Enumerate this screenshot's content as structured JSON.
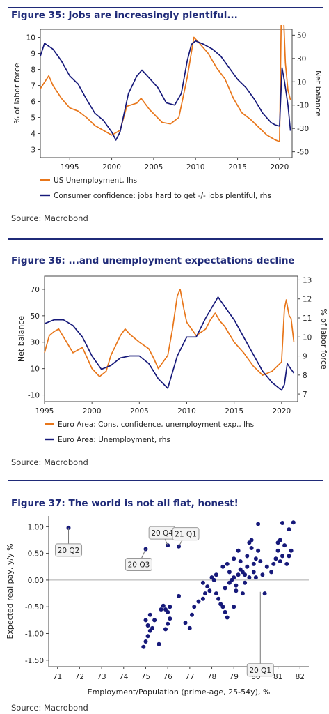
{
  "figures": [
    {
      "title": "Figure 35: Jobs are increasingly plentiful...",
      "source": "Source: Macrobond"
    },
    {
      "title": "Figure 36: ...and unemployment expectations decline",
      "source": "Source: Macrobond"
    },
    {
      "title": "Figure 37: The world is not all flat, honest!",
      "source": "Source: Macrobond"
    }
  ],
  "colors": {
    "orange": "#e8761a",
    "navy": "#16197a",
    "title": "#1f2a78"
  },
  "chart_data": [
    {
      "type": "line",
      "xlabel": "",
      "ylabel_left": "% of labor force",
      "ylabel_right": "Net balance",
      "xlim": [
        1991.5,
        2021.5
      ],
      "ylim_left": [
        2.5,
        10.5
      ],
      "ylim_right": [
        -55,
        55
      ],
      "x_ticks": [
        1995,
        2000,
        2005,
        2010,
        2015,
        2020
      ],
      "y_ticks_left": [
        3,
        4,
        5,
        6,
        7,
        8,
        9,
        10
      ],
      "y_ticks_right": [
        -50,
        -30,
        -10,
        10,
        30,
        50
      ],
      "legend": "bottom",
      "series": [
        {
          "name": "US Unemployment, lhs",
          "axis": "left",
          "color": "#e8761a",
          "x": [
            1991.5,
            1992.5,
            1993,
            1994,
            1995,
            1996,
            1997,
            1998,
            1999,
            2000,
            2001,
            2001.8,
            2003,
            2003.5,
            2004.5,
            2006,
            2007,
            2008,
            2009,
            2009.8,
            2010.5,
            2011.5,
            2012.5,
            2013.5,
            2014.5,
            2015.5,
            2016.5,
            2017.5,
            2018.5,
            2019.5,
            2020.0,
            2020.3,
            2020.5,
            2020.7,
            2021.0,
            2021.3
          ],
          "y": [
            6.8,
            7.6,
            7.0,
            6.2,
            5.6,
            5.4,
            5.0,
            4.5,
            4.2,
            3.9,
            4.2,
            5.7,
            5.9,
            6.2,
            5.5,
            4.7,
            4.6,
            5.0,
            7.5,
            10.0,
            9.6,
            9.0,
            8.1,
            7.4,
            6.2,
            5.3,
            4.9,
            4.4,
            3.9,
            3.6,
            3.5,
            14.7,
            11.1,
            8.4,
            6.7,
            6.1
          ]
        },
        {
          "name": "Consumer confidence: jobs hard to get -/- jobs plentiful, rhs",
          "axis": "right",
          "color": "#16197a",
          "x": [
            1991.5,
            1992,
            1993,
            1994,
            1995,
            1996,
            1997,
            1998,
            1999,
            2000,
            2000.5,
            2001,
            2002,
            2003,
            2003.6,
            2004.5,
            2005.5,
            2006.5,
            2007.5,
            2008.3,
            2009.0,
            2009.5,
            2010,
            2011,
            2012,
            2013,
            2014,
            2015,
            2016,
            2017,
            2018,
            2019,
            2019.5,
            2020.0,
            2020.3,
            2020.6,
            2021.0,
            2021.3
          ],
          "y": [
            32,
            43,
            38,
            28,
            15,
            8,
            -5,
            -17,
            -23,
            -33,
            -40,
            -33,
            0,
            15,
            20,
            13,
            5,
            -8,
            -10,
            0,
            28,
            42,
            45,
            42,
            38,
            32,
            22,
            12,
            5,
            -5,
            -17,
            -25,
            -27,
            -28,
            22,
            10,
            -10,
            -32
          ]
        }
      ]
    },
    {
      "type": "line",
      "xlabel": "",
      "ylabel_left": "Net balance",
      "ylabel_right": "% of labor force",
      "xlim": [
        1995,
        2021.7
      ],
      "ylim_left": [
        -15,
        80
      ],
      "ylim_right": [
        6.6,
        13.2
      ],
      "x_ticks": [
        1995,
        2000,
        2005,
        2010,
        2015,
        2020
      ],
      "y_ticks_left": [
        -10,
        10,
        30,
        50,
        70
      ],
      "y_ticks_right": [
        7,
        8,
        9,
        10,
        11,
        12,
        13
      ],
      "legend": "bottom",
      "series": [
        {
          "name": "Euro Area: Cons. confidence, unemployment exp., lhs",
          "axis": "left",
          "color": "#e8761a",
          "x": [
            1995,
            1995.5,
            1996,
            1996.5,
            1997,
            1998,
            1999,
            2000,
            2000.8,
            2001.5,
            2002,
            2003,
            2003.5,
            2004,
            2005,
            2006,
            2006.5,
            2007,
            2008,
            2008.5,
            2009.0,
            2009.3,
            2009.7,
            2010,
            2011,
            2012,
            2012.5,
            2013,
            2013.5,
            2014,
            2015,
            2016,
            2017,
            2018,
            2019,
            2020.0,
            2020.3,
            2020.5,
            2020.8,
            2021.0,
            2021.3
          ],
          "y": [
            22,
            35,
            38,
            40,
            34,
            22,
            26,
            10,
            4,
            8,
            20,
            35,
            40,
            36,
            30,
            25,
            18,
            10,
            20,
            40,
            65,
            70,
            55,
            45,
            35,
            40,
            47,
            52,
            46,
            42,
            30,
            22,
            12,
            5,
            8,
            15,
            55,
            62,
            50,
            48,
            30
          ]
        },
        {
          "name": "Euro Area: Unemployment, rhs",
          "axis": "right",
          "color": "#16197a",
          "x": [
            1995,
            1996,
            1997,
            1998,
            1999,
            2000,
            2001,
            2002,
            2003,
            2004,
            2005,
            2006,
            2007,
            2008,
            2009,
            2010,
            2011,
            2012,
            2013.3,
            2014,
            2015,
            2016,
            2017,
            2018,
            2019,
            2020.0,
            2020.3,
            2020.6,
            2021.0,
            2021.3
          ],
          "y": [
            10.7,
            10.9,
            10.9,
            10.6,
            10.0,
            9.0,
            8.3,
            8.5,
            8.9,
            9.0,
            9.0,
            8.6,
            7.8,
            7.3,
            9.0,
            10.0,
            10.0,
            11.0,
            12.1,
            11.6,
            10.9,
            10.0,
            9.1,
            8.2,
            7.6,
            7.2,
            7.5,
            8.6,
            8.3,
            8.1
          ]
        }
      ]
    },
    {
      "type": "scatter",
      "xlabel": "Employment/Population (prime-age, 25-54y), %",
      "ylabel": "Expected real pay, y/y %",
      "xlim": [
        70.6,
        82.4
      ],
      "ylim": [
        -1.62,
        1.2
      ],
      "x_ticks": [
        71,
        72,
        73,
        74,
        75,
        76,
        77,
        78,
        79,
        80,
        81,
        82
      ],
      "y_ticks": [
        1.0,
        0.5,
        0.0,
        -0.5,
        -1.0,
        -1.5
      ],
      "color": "#16197a",
      "annotations": [
        {
          "text": "20 Q2",
          "x": 71.5,
          "y": 0.98
        },
        {
          "text": "20 Q3",
          "x": 75.0,
          "y": 0.58
        },
        {
          "text": "20 Q4",
          "x": 76.0,
          "y": 0.65
        },
        {
          "text": "21 Q1",
          "x": 76.5,
          "y": 0.63
        },
        {
          "text": "20 Q1",
          "x": 80.2,
          "y": -0.22
        }
      ],
      "points": [
        [
          71.5,
          0.98
        ],
        [
          75.0,
          0.58
        ],
        [
          76.0,
          0.65
        ],
        [
          76.5,
          0.63
        ],
        [
          74.9,
          -1.25
        ],
        [
          75.0,
          -1.15
        ],
        [
          75.1,
          -1.05
        ],
        [
          75.2,
          -0.95
        ],
        [
          75.1,
          -0.85
        ],
        [
          75.0,
          -0.75
        ],
        [
          75.3,
          -0.9
        ],
        [
          75.4,
          -0.75
        ],
        [
          75.2,
          -0.65
        ],
        [
          75.6,
          -1.2
        ],
        [
          75.7,
          -0.55
        ],
        [
          75.8,
          -0.48
        ],
        [
          75.9,
          -0.55
        ],
        [
          76.0,
          -0.6
        ],
        [
          76.1,
          -0.5
        ],
        [
          76.1,
          -0.72
        ],
        [
          76.0,
          -0.82
        ],
        [
          75.9,
          -0.92
        ],
        [
          76.5,
          -0.3
        ],
        [
          76.8,
          -0.8
        ],
        [
          77.0,
          -0.9
        ],
        [
          77.1,
          -0.65
        ],
        [
          77.4,
          -0.4
        ],
        [
          77.6,
          -0.35
        ],
        [
          77.7,
          -0.25
        ],
        [
          77.9,
          -0.2
        ],
        [
          77.8,
          -0.12
        ],
        [
          77.6,
          -0.05
        ],
        [
          78.0,
          0.05
        ],
        [
          78.2,
          0.1
        ],
        [
          78.1,
          0.0
        ],
        [
          78.2,
          -0.25
        ],
        [
          78.3,
          -0.35
        ],
        [
          78.4,
          -0.45
        ],
        [
          78.5,
          -0.5
        ],
        [
          78.6,
          -0.6
        ],
        [
          78.7,
          -0.7
        ],
        [
          78.5,
          0.25
        ],
        [
          78.7,
          0.3
        ],
        [
          78.8,
          0.15
        ],
        [
          78.8,
          -0.05
        ],
        [
          78.9,
          0.0
        ],
        [
          79.0,
          0.4
        ],
        [
          79.0,
          0.05
        ],
        [
          79.1,
          -0.1
        ],
        [
          79.1,
          -0.2
        ],
        [
          79.2,
          0.1
        ],
        [
          79.2,
          0.55
        ],
        [
          79.3,
          0.35
        ],
        [
          79.3,
          0.2
        ],
        [
          79.4,
          0.15
        ],
        [
          79.4,
          -0.25
        ],
        [
          79.5,
          0.1
        ],
        [
          79.5,
          -0.05
        ],
        [
          79.6,
          0.45
        ],
        [
          79.6,
          0.25
        ],
        [
          79.7,
          0.05
        ],
        [
          79.7,
          0.7
        ],
        [
          79.8,
          0.6
        ],
        [
          79.8,
          0.75
        ],
        [
          79.9,
          0.3
        ],
        [
          79.9,
          0.15
        ],
        [
          80.0,
          0.05
        ],
        [
          80.0,
          0.4
        ],
        [
          80.1,
          0.55
        ],
        [
          80.1,
          1.05
        ],
        [
          80.2,
          0.35
        ],
        [
          80.3,
          0.1
        ],
        [
          80.4,
          -0.25
        ],
        [
          80.5,
          0.25
        ],
        [
          80.7,
          0.15
        ],
        [
          80.8,
          0.3
        ],
        [
          80.9,
          0.4
        ],
        [
          81.0,
          0.55
        ],
        [
          81.0,
          0.7
        ],
        [
          81.1,
          0.35
        ],
        [
          81.1,
          0.75
        ],
        [
          81.2,
          0.45
        ],
        [
          81.3,
          0.65
        ],
        [
          81.2,
          1.07
        ],
        [
          81.4,
          0.3
        ],
        [
          81.5,
          0.45
        ],
        [
          81.6,
          0.55
        ],
        [
          81.5,
          0.95
        ],
        [
          81.7,
          1.08
        ],
        [
          79.0,
          -0.5
        ],
        [
          78.6,
          -0.15
        ],
        [
          77.2,
          -0.5
        ]
      ]
    }
  ]
}
